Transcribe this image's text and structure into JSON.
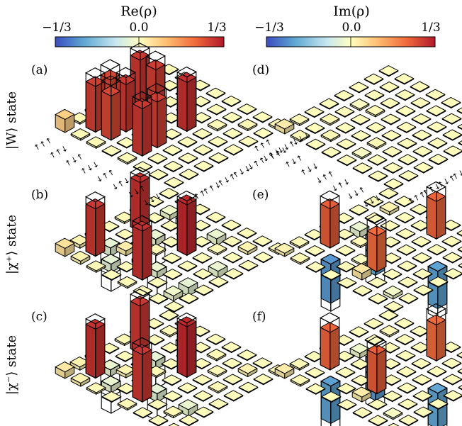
{
  "figure": {
    "colorbars": [
      {
        "title": "Re(ρ)",
        "ticks": [
          "−1/3",
          "0.0",
          "1/3"
        ],
        "range": [
          -0.3333,
          0.3333
        ]
      },
      {
        "title": "Im(ρ)",
        "ticks": [
          "−1/3",
          "0.0",
          "1/3"
        ],
        "range": [
          -0.3333,
          0.3333
        ]
      }
    ],
    "row_labels": [
      "|W⟩ state",
      "|χ⁺⟩ state",
      "|χ⁻⟩ state"
    ],
    "panel_labels": [
      "(a)",
      "(b)",
      "(c)",
      "(d)",
      "(e)",
      "(f)"
    ],
    "basis_labels": [
      "↑↑↑",
      "↑↑↓",
      "↑↓↑",
      "↑↓↓",
      "↓↑↑",
      "↓↑↓",
      "↓↓↑",
      "↓↓↓"
    ],
    "colormap": [
      "#3b4cc0",
      "#5fa8d3",
      "#c7e7f0",
      "#ffffbf",
      "#fdbe70",
      "#f16a3a",
      "#b2182b"
    ]
  },
  "chart_data": [
    {
      "type": "3d-bar",
      "panel": "(a)",
      "component": "Re(ρ)",
      "row_labels": [
        "↑↑↑",
        "↑↑↓",
        "↑↓↑",
        "↑↓↓",
        "↓↑↑",
        "↓↑↓",
        "↓↓↑",
        "↓↓↓"
      ],
      "col_labels": [
        "↑↑↑",
        "↑↑↓",
        "↑↓↑",
        "↑↓↓",
        "↓↑↑",
        "↓↑↓",
        "↓↓↑",
        "↓↓↓"
      ],
      "zlim": [
        -0.3333,
        0.3333
      ],
      "measured": [
        [
          0.08,
          0.01,
          0.01,
          0.0,
          0.01,
          0.0,
          0.0,
          0.0
        ],
        [
          0.01,
          0.28,
          0.27,
          0.0,
          0.29,
          0.0,
          0.0,
          0.0
        ],
        [
          0.01,
          0.27,
          0.29,
          0.0,
          0.28,
          0.0,
          0.0,
          0.0
        ],
        [
          0.0,
          0.0,
          0.0,
          0.01,
          0.0,
          0.0,
          0.0,
          0.0
        ],
        [
          0.01,
          0.29,
          0.28,
          0.0,
          0.3,
          0.0,
          0.0,
          0.0
        ],
        [
          0.0,
          0.0,
          0.0,
          0.0,
          0.0,
          0.01,
          0.0,
          0.0
        ],
        [
          0.0,
          0.0,
          0.0,
          0.0,
          0.0,
          0.0,
          0.01,
          0.0
        ],
        [
          0.0,
          0.0,
          0.0,
          0.0,
          0.0,
          0.0,
          0.0,
          0.01
        ]
      ],
      "ideal": [
        [
          0,
          0,
          0,
          0,
          0,
          0,
          0,
          0
        ],
        [
          0,
          0.3333,
          0.3333,
          0,
          0.3333,
          0,
          0,
          0
        ],
        [
          0,
          0.3333,
          0.3333,
          0,
          0.3333,
          0,
          0,
          0
        ],
        [
          0,
          0,
          0,
          0,
          0,
          0,
          0,
          0
        ],
        [
          0,
          0.3333,
          0.3333,
          0,
          0.3333,
          0,
          0,
          0
        ],
        [
          0,
          0,
          0,
          0,
          0,
          0,
          0,
          0
        ],
        [
          0,
          0,
          0,
          0,
          0,
          0,
          0,
          0
        ],
        [
          0,
          0,
          0,
          0,
          0,
          0,
          0,
          0
        ]
      ]
    },
    {
      "type": "3d-bar",
      "panel": "(b)",
      "component": "Re(ρ)",
      "zlim": [
        -0.3333,
        0.3333
      ],
      "measured": [
        [
          0.05,
          0.02,
          0.01,
          0.0,
          0.01,
          0.0,
          0.0,
          0.0
        ],
        [
          0.02,
          0.29,
          -0.05,
          0.0,
          0.3,
          0.0,
          -0.03,
          0.0
        ],
        [
          0.01,
          -0.05,
          0.03,
          -0.02,
          -0.04,
          0.0,
          -0.05,
          0.0
        ],
        [
          0.0,
          0.0,
          -0.02,
          0.01,
          0.0,
          0.0,
          0.0,
          0.0
        ],
        [
          0.01,
          0.3,
          -0.04,
          0.0,
          0.31,
          0.0,
          -0.04,
          0.0
        ],
        [
          0.0,
          0.0,
          0.0,
          0.0,
          0.0,
          0.01,
          0.0,
          0.0
        ],
        [
          0.0,
          -0.03,
          -0.05,
          0.0,
          -0.04,
          0.0,
          0.02,
          0.0
        ],
        [
          0.0,
          0.0,
          0.0,
          0.0,
          0.0,
          0.0,
          0.0,
          0.01
        ]
      ],
      "ideal": [
        [
          0,
          0,
          0,
          0,
          0,
          0,
          0,
          0
        ],
        [
          0,
          0.3333,
          -0.1667,
          0,
          0.3333,
          0,
          0,
          0
        ],
        [
          0,
          -0.1667,
          0,
          0,
          -0.1667,
          0,
          0,
          0
        ],
        [
          0,
          0,
          0,
          0,
          0,
          0,
          0,
          0
        ],
        [
          0,
          0.3333,
          -0.1667,
          0,
          0.3333,
          0,
          0,
          0
        ],
        [
          0,
          0,
          0,
          0,
          0,
          0,
          0,
          0
        ],
        [
          0,
          0,
          0,
          0,
          0,
          0,
          0,
          0
        ],
        [
          0,
          0,
          0,
          0,
          0,
          0,
          0,
          0
        ]
      ]
    },
    {
      "type": "3d-bar",
      "panel": "(c)",
      "component": "Re(ρ)",
      "zlim": [
        -0.3333,
        0.3333
      ],
      "measured": [
        [
          0.04,
          0.02,
          0.01,
          0.0,
          0.01,
          0.0,
          0.0,
          0.0
        ],
        [
          0.02,
          0.3,
          -0.04,
          0.0,
          0.29,
          0.0,
          0.01,
          0.0
        ],
        [
          0.01,
          -0.04,
          0.02,
          0.0,
          -0.05,
          0.0,
          -0.04,
          0.0
        ],
        [
          0.0,
          0.0,
          0.0,
          0.01,
          0.0,
          0.0,
          0.0,
          0.0
        ],
        [
          0.01,
          0.29,
          -0.05,
          0.0,
          0.31,
          0.0,
          0.01,
          0.0
        ],
        [
          0.0,
          0.0,
          0.0,
          0.0,
          0.0,
          0.01,
          0.0,
          0.0
        ],
        [
          0.0,
          0.01,
          -0.04,
          0.0,
          0.01,
          0.0,
          0.02,
          0.0
        ],
        [
          0.0,
          0.0,
          0.0,
          0.0,
          0.0,
          0.0,
          0.0,
          0.01
        ]
      ],
      "ideal": [
        [
          0,
          0,
          0,
          0,
          0,
          0,
          0,
          0
        ],
        [
          0,
          0.3333,
          -0.1667,
          0,
          0.3333,
          0,
          0,
          0
        ],
        [
          0,
          -0.1667,
          0,
          0,
          -0.1667,
          0,
          0,
          0
        ],
        [
          0,
          0,
          0,
          0,
          0,
          0,
          0,
          0
        ],
        [
          0,
          0.3333,
          -0.1667,
          0,
          0.3333,
          0,
          0,
          0
        ],
        [
          0,
          0,
          0,
          0,
          0,
          0,
          0,
          0
        ],
        [
          0,
          0,
          0,
          0,
          0,
          0,
          0,
          0
        ],
        [
          0,
          0,
          0,
          0,
          0,
          0,
          0,
          0
        ]
      ]
    },
    {
      "type": "3d-bar",
      "panel": "(d)",
      "component": "Im(ρ)",
      "zlim": [
        -0.3333,
        0.3333
      ],
      "measured": [
        [
          0.03,
          0.01,
          0.0,
          0.0,
          0.0,
          0.0,
          0.0,
          0.0
        ],
        [
          0.01,
          0.0,
          0.01,
          0.0,
          -0.01,
          0.0,
          0.0,
          0.0
        ],
        [
          0.0,
          0.01,
          0.0,
          0.0,
          0.01,
          0.0,
          0.0,
          0.0
        ],
        [
          0.0,
          0.0,
          0.0,
          0.0,
          0.0,
          0.0,
          0.0,
          0.0
        ],
        [
          0.0,
          -0.01,
          0.01,
          0.0,
          0.0,
          0.0,
          0.0,
          0.0
        ],
        [
          0.0,
          0.0,
          0.0,
          0.0,
          0.0,
          0.0,
          0.0,
          0.0
        ],
        [
          0.0,
          0.0,
          0.0,
          0.0,
          0.0,
          0.0,
          0.0,
          0.0
        ],
        [
          0.0,
          0.0,
          0.0,
          0.0,
          0.0,
          0.0,
          0.0,
          0.0
        ]
      ],
      "ideal": [
        [
          0,
          0,
          0,
          0,
          0,
          0,
          0,
          0
        ],
        [
          0,
          0,
          0,
          0,
          0,
          0,
          0,
          0
        ],
        [
          0,
          0,
          0,
          0,
          0,
          0,
          0,
          0
        ],
        [
          0,
          0,
          0,
          0,
          0,
          0,
          0,
          0
        ],
        [
          0,
          0,
          0,
          0,
          0,
          0,
          0,
          0
        ],
        [
          0,
          0,
          0,
          0,
          0,
          0,
          0,
          0
        ],
        [
          0,
          0,
          0,
          0,
          0,
          0,
          0,
          0
        ],
        [
          0,
          0,
          0,
          0,
          0,
          0,
          0,
          0
        ]
      ]
    },
    {
      "type": "3d-bar",
      "panel": "(e)",
      "component": "Im(ρ)",
      "zlim": [
        -0.3333,
        0.3333
      ],
      "measured": [
        [
          0.02,
          0.01,
          0.0,
          0.0,
          0.0,
          0.0,
          0.0,
          0.0
        ],
        [
          0.01,
          0.0,
          0.24,
          0.0,
          -0.04,
          0.0,
          0.02,
          0.0
        ],
        [
          0.0,
          -0.24,
          0.0,
          0.01,
          -0.22,
          0.0,
          0.0,
          0.0
        ],
        [
          0.0,
          0.0,
          -0.01,
          0.0,
          0.0,
          0.0,
          0.0,
          0.0
        ],
        [
          0.0,
          0.04,
          0.22,
          0.0,
          0.0,
          0.0,
          0.23,
          0.0
        ],
        [
          0.0,
          0.0,
          0.0,
          0.0,
          0.0,
          0.0,
          0.0,
          0.0
        ],
        [
          0.0,
          -0.02,
          0.0,
          0.0,
          -0.23,
          0.0,
          0.0,
          0.0
        ],
        [
          0.0,
          0.0,
          0.0,
          0.0,
          0.0,
          0.0,
          0.0,
          0.0
        ]
      ],
      "ideal": [
        [
          0,
          0,
          0,
          0,
          0,
          0,
          0,
          0
        ],
        [
          0,
          0,
          0.2887,
          0,
          0,
          0,
          0,
          0
        ],
        [
          0,
          -0.2887,
          0,
          0,
          -0.2887,
          0,
          0,
          0
        ],
        [
          0,
          0,
          0,
          0,
          0,
          0,
          0,
          0
        ],
        [
          0,
          0,
          0.2887,
          0,
          0,
          0,
          0.2887,
          0
        ],
        [
          0,
          0,
          0,
          0,
          0,
          0,
          0,
          0
        ],
        [
          0,
          0,
          0,
          0,
          -0.2887,
          0,
          0,
          0
        ],
        [
          0,
          0,
          0,
          0,
          0,
          0,
          0,
          0
        ]
      ]
    },
    {
      "type": "3d-bar",
      "panel": "(f)",
      "component": "Im(ρ)",
      "zlim": [
        -0.3333,
        0.3333
      ],
      "measured": [
        [
          0.03,
          0.01,
          0.0,
          0.0,
          0.0,
          0.0,
          0.0,
          0.0
        ],
        [
          0.01,
          0.0,
          0.23,
          0.0,
          -0.03,
          0.0,
          0.01,
          0.0
        ],
        [
          0.0,
          -0.23,
          0.0,
          0.0,
          -0.24,
          0.0,
          0.0,
          0.0
        ],
        [
          0.0,
          0.0,
          0.0,
          0.0,
          0.0,
          0.0,
          0.0,
          0.0
        ],
        [
          0.0,
          0.03,
          0.24,
          0.0,
          0.0,
          0.0,
          0.22,
          0.0
        ],
        [
          0.0,
          0.0,
          0.0,
          0.0,
          0.0,
          0.0,
          0.0,
          0.0
        ],
        [
          0.0,
          -0.01,
          0.0,
          0.0,
          -0.22,
          0.0,
          0.0,
          0.0
        ],
        [
          0.0,
          0.0,
          0.0,
          0.0,
          0.0,
          0.0,
          0.0,
          0.0
        ]
      ],
      "ideal": [
        [
          0,
          0,
          0,
          0,
          0,
          0,
          0,
          0
        ],
        [
          0,
          0,
          0.2887,
          0,
          0,
          0,
          0,
          0
        ],
        [
          0,
          -0.2887,
          0,
          0,
          -0.2887,
          0,
          0,
          0
        ],
        [
          0,
          0,
          0,
          0,
          0,
          0,
          0,
          0
        ],
        [
          0,
          0,
          0.2887,
          0,
          0,
          0,
          0.2887,
          0
        ],
        [
          0,
          0,
          0,
          0,
          0,
          0,
          0,
          0
        ],
        [
          0,
          0,
          0,
          0,
          -0.2887,
          0,
          0,
          0
        ],
        [
          0,
          0,
          0,
          0,
          0,
          0,
          0,
          0
        ]
      ]
    }
  ]
}
